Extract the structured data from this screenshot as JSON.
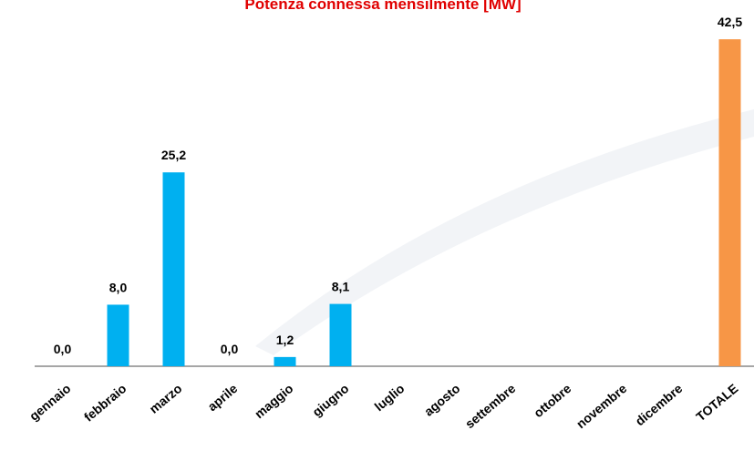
{
  "chart_data": {
    "type": "bar",
    "title": "Potenza connessa mensilmente [MW]",
    "categories": [
      "gennaio",
      "febbraio",
      "marzo",
      "aprile",
      "maggio",
      "giugno",
      "luglio",
      "agosto",
      "settembre",
      "ottobre",
      "novembre",
      "dicembre",
      "TOTALE"
    ],
    "values": [
      0,
      8,
      25.2,
      0,
      1.2,
      8.1,
      null,
      null,
      null,
      null,
      null,
      null,
      42.5
    ],
    "value_labels": [
      "0,0",
      "8,0",
      "25,2",
      "0,0",
      "1,2",
      "8,1",
      null,
      null,
      null,
      null,
      null,
      null,
      "42,5"
    ],
    "colors": [
      "#00b0f0",
      "#00b0f0",
      "#00b0f0",
      "#00b0f0",
      "#00b0f0",
      "#00b0f0",
      "#00b0f0",
      "#00b0f0",
      "#00b0f0",
      "#00b0f0",
      "#00b0f0",
      "#00b0f0",
      "#f79646"
    ],
    "ylim": [
      0,
      45
    ]
  }
}
